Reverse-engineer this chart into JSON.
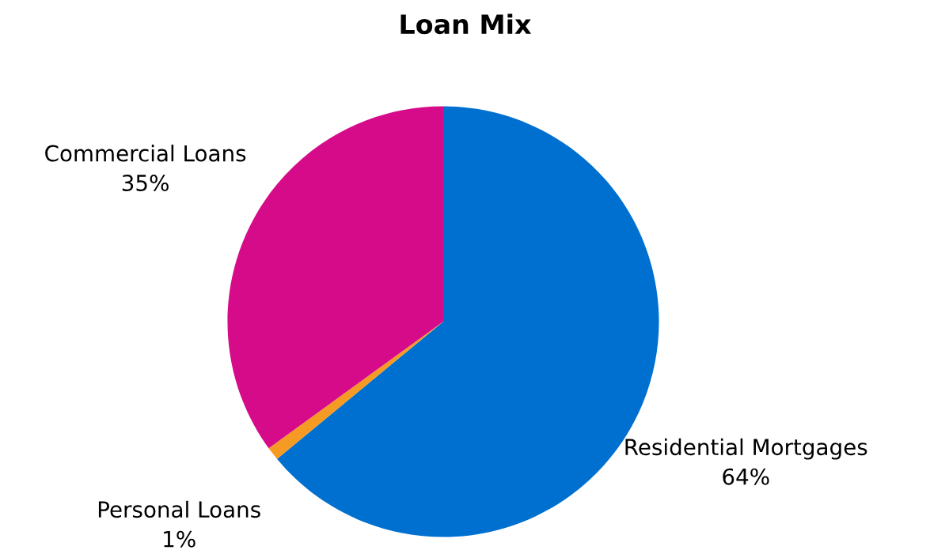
{
  "chart_data": {
    "type": "pie",
    "title": "Loan Mix",
    "categories": [
      "Residential Mortgages",
      "Personal Loans",
      "Commercial Loans"
    ],
    "values": [
      64,
      1,
      35
    ],
    "value_labels": [
      "64%",
      "1%",
      "35%"
    ],
    "colors": [
      "#0070d0",
      "#f59a23",
      "#d60b8a"
    ]
  }
}
